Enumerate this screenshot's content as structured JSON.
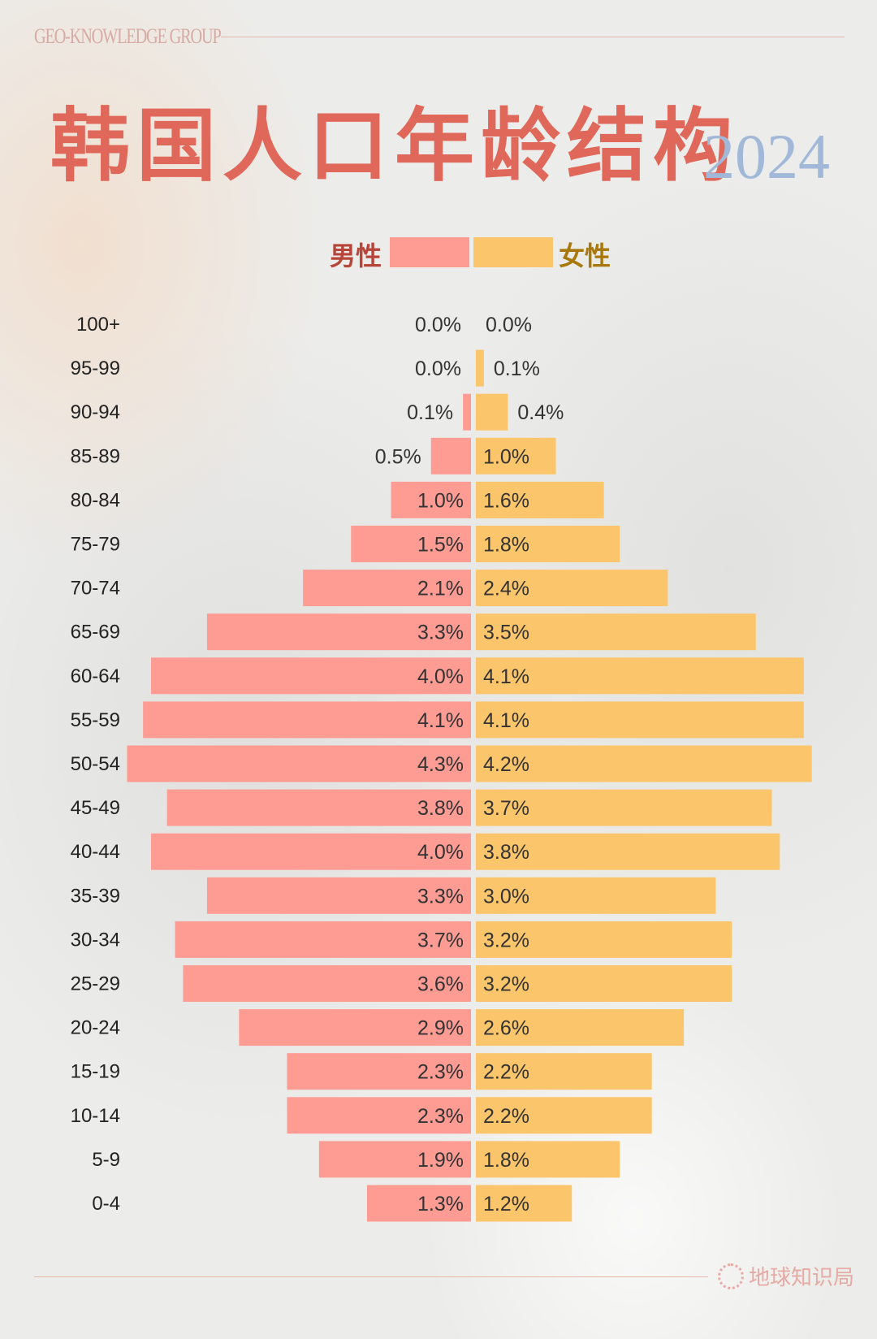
{
  "header": {
    "brand": "GEO-KNOWLEDGE GROUP",
    "title": "韩国人口年龄结构",
    "year": "2024"
  },
  "legend": {
    "male_label": "男性",
    "female_label": "女性"
  },
  "footer": {
    "logo_text": "地球知识局"
  },
  "colors": {
    "male": "#fe9c94",
    "female": "#fbc56b",
    "title": "#e0685a",
    "year": "#a1b8d8",
    "male_label": "#b8453a",
    "female_label": "#a8780a"
  },
  "chart_data": {
    "type": "bar",
    "orientation": "horizontal population pyramid",
    "categories": [
      "100+",
      "95-99",
      "90-94",
      "85-89",
      "80-84",
      "75-79",
      "70-74",
      "65-69",
      "60-64",
      "55-59",
      "50-54",
      "45-49",
      "40-44",
      "35-39",
      "30-34",
      "25-29",
      "20-24",
      "15-19",
      "10-14",
      "5-9",
      "0-4"
    ],
    "series": [
      {
        "name": "男性",
        "values": [
          0.0,
          0.0,
          0.1,
          0.5,
          1.0,
          1.5,
          2.1,
          3.3,
          4.0,
          4.1,
          4.3,
          3.8,
          4.0,
          3.3,
          3.7,
          3.6,
          2.9,
          2.3,
          2.3,
          1.9,
          1.3
        ],
        "labels": [
          "0.0%",
          "0.0%",
          "0.1%",
          "0.5%",
          "1.0%",
          "1.5%",
          "2.1%",
          "3.3%",
          "4.0%",
          "4.1%",
          "4.3%",
          "3.8%",
          "4.0%",
          "3.3%",
          "3.7%",
          "3.6%",
          "2.9%",
          "2.3%",
          "2.3%",
          "1.9%",
          "1.3%"
        ]
      },
      {
        "name": "女性",
        "values": [
          0.0,
          0.1,
          0.4,
          1.0,
          1.6,
          1.8,
          2.4,
          3.5,
          4.1,
          4.1,
          4.2,
          3.7,
          3.8,
          3.0,
          3.2,
          3.2,
          2.6,
          2.2,
          2.2,
          1.8,
          1.2
        ],
        "labels": [
          "0.0%",
          "0.1%",
          "0.4%",
          "1.0%",
          "1.6%",
          "1.8%",
          "2.4%",
          "3.5%",
          "4.1%",
          "4.1%",
          "4.2%",
          "3.7%",
          "3.8%",
          "3.0%",
          "3.2%",
          "3.2%",
          "2.6%",
          "2.2%",
          "2.2%",
          "1.8%",
          "1.2%"
        ]
      }
    ],
    "unit": "%",
    "grid": false,
    "legend_position": "top-center"
  }
}
